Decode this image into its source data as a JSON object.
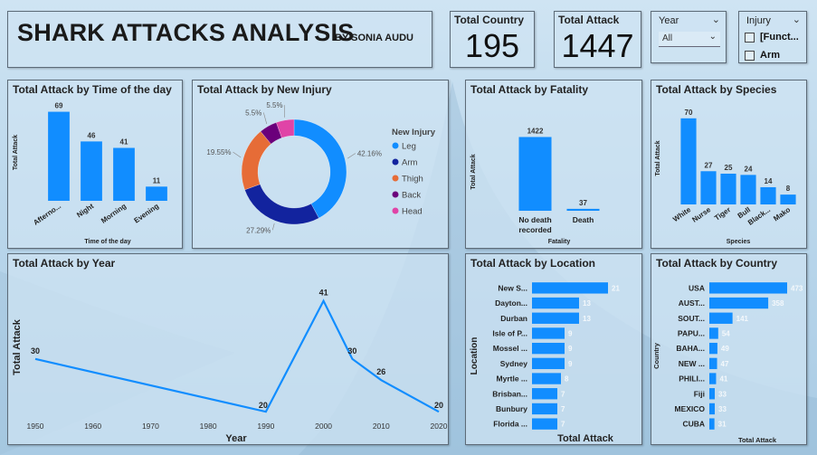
{
  "header": {
    "title": "SHARK ATTACKS ANALYSIS",
    "byline": "BY SONIA AUDU"
  },
  "cards": [
    {
      "label": "Total Country",
      "value": "195"
    },
    {
      "label": "Total Attack",
      "value": "1447"
    }
  ],
  "slicers": {
    "year": {
      "label": "Year",
      "selected": "All"
    },
    "injury": {
      "label": "Injury",
      "options": [
        "[Funct...",
        "Arm"
      ]
    }
  },
  "colors": {
    "bar": "#118DFF",
    "leg": "#118DFF",
    "arm": "#12239E",
    "thigh": "#E66C37",
    "back": "#6B007B",
    "head": "#E044A7"
  },
  "chart_data": [
    {
      "id": "time_of_day",
      "type": "bar",
      "title": "Total Attack by Time of the day",
      "xlabel": "Time of the day",
      "ylabel": "Total Attack",
      "categories": [
        "Afterno...",
        "Night",
        "Morning",
        "Evening"
      ],
      "values": [
        69,
        46,
        41,
        11
      ],
      "ylim": [
        0,
        75
      ]
    },
    {
      "id": "new_injury",
      "type": "pie",
      "title": "Total Attack by New Injury",
      "legend_title": "New Injury",
      "legend_position": "right",
      "slices": [
        {
          "name": "Leg",
          "value": 42.16,
          "label": "42.16%"
        },
        {
          "name": "Arm",
          "value": 27.29,
          "label": "27.29%"
        },
        {
          "name": "Thigh",
          "value": 19.55,
          "label": "19.55%"
        },
        {
          "name": "Back",
          "value": 5.5,
          "label": "5.5%"
        },
        {
          "name": "Head",
          "value": 5.5,
          "label": "5.5%"
        }
      ]
    },
    {
      "id": "fatality",
      "type": "bar",
      "title": "Total Attack by Fatality",
      "xlabel": "Fatality",
      "ylabel": "Total Attack",
      "categories": [
        "No death recorded",
        "Death"
      ],
      "values": [
        1422,
        37
      ],
      "ylim": [
        0,
        1500
      ]
    },
    {
      "id": "species",
      "type": "bar",
      "title": "Total Attack by Species",
      "xlabel": "Species",
      "ylabel": "Total Attack",
      "categories": [
        "White",
        "Nurse",
        "Tiger",
        "Bull",
        "Black...",
        "Mako"
      ],
      "values": [
        70,
        27,
        25,
        24,
        14,
        8
      ],
      "ylim": [
        0,
        75
      ]
    },
    {
      "id": "year",
      "type": "line",
      "title": "Total Attack by Year",
      "xlabel": "Year",
      "ylabel": "Total Attack",
      "x": [
        1950,
        1990,
        2000,
        2005,
        2010,
        2020
      ],
      "values": [
        30,
        20,
        41,
        30,
        26,
        20
      ],
      "xticks": [
        1950,
        1960,
        1970,
        1980,
        1990,
        2000,
        2010,
        2020
      ],
      "xlim": [
        1950,
        2020
      ],
      "ylim": [
        19,
        43
      ]
    },
    {
      "id": "location",
      "type": "bar",
      "orientation": "horizontal",
      "title": "Total Attack by Location",
      "xlabel": "Total Attack",
      "ylabel": "Location",
      "categories": [
        "New S...",
        "Dayton...",
        "Durban",
        "Isle of P...",
        "Mossel ...",
        "Sydney",
        "Myrtle ...",
        "Brisban...",
        "Bunbury",
        "Florida ..."
      ],
      "values": [
        21,
        13,
        13,
        9,
        9,
        9,
        8,
        7,
        7,
        7
      ],
      "xlim": [
        0,
        21
      ]
    },
    {
      "id": "country",
      "type": "bar",
      "orientation": "horizontal",
      "title": "Total Attack by Country",
      "xlabel": "Total Attack",
      "ylabel": "Country",
      "categories": [
        "USA",
        "AUST...",
        "SOUT...",
        "PAPU...",
        "BAHA...",
        "NEW ...",
        "PHILI...",
        "Fiji",
        "MEXICO",
        "CUBA"
      ],
      "values": [
        473,
        358,
        141,
        54,
        49,
        47,
        41,
        33,
        33,
        31
      ],
      "xlim": [
        0,
        473
      ]
    }
  ]
}
